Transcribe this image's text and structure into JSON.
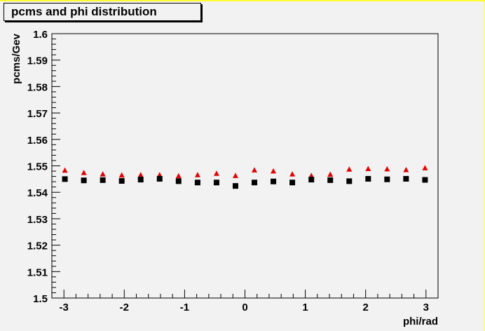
{
  "colors": {
    "background": "#f2f2f2",
    "canvas_border": "#ffff33",
    "series_red": "#e00000",
    "series_black": "#000000"
  },
  "chart_data": {
    "type": "scatter",
    "title": "pcms and phi distribution",
    "xlabel": "phi/rad",
    "ylabel": "pcms/Gev",
    "xlim": [
      -3.2,
      3.2
    ],
    "ylim": [
      1.5,
      1.6
    ],
    "xticks": [
      "-3",
      "-2",
      "-1",
      "0",
      "1",
      "2",
      "3"
    ],
    "yticks": [
      "1.5",
      "1.51",
      "1.52",
      "1.53",
      "1.54",
      "1.55",
      "1.56",
      "1.57",
      "1.58",
      "1.59",
      "1.6"
    ],
    "grid": false,
    "legend": "none",
    "series": [
      {
        "marker": "triangle",
        "color": "#e00000",
        "x": [
          -2.984,
          -2.67,
          -2.356,
          -2.042,
          -1.728,
          -1.414,
          -1.1,
          -0.785,
          -0.471,
          -0.157,
          0.157,
          0.471,
          0.785,
          1.1,
          1.414,
          1.728,
          2.042,
          2.356,
          2.67,
          2.984
        ],
        "y": [
          1.5482,
          1.5473,
          1.5468,
          1.5464,
          1.5465,
          1.5465,
          1.5461,
          1.5465,
          1.547,
          1.5462,
          1.5483,
          1.5479,
          1.5468,
          1.5462,
          1.5467,
          1.5486,
          1.5488,
          1.5487,
          1.5484,
          1.5491
        ]
      },
      {
        "marker": "square",
        "color": "#000000",
        "x": [
          -2.984,
          -2.67,
          -2.356,
          -2.042,
          -1.728,
          -1.414,
          -1.1,
          -0.785,
          -0.471,
          -0.157,
          0.157,
          0.471,
          0.785,
          1.1,
          1.414,
          1.728,
          2.042,
          2.356,
          2.67,
          2.984
        ],
        "y": [
          1.545,
          1.5445,
          1.5446,
          1.5443,
          1.5448,
          1.5451,
          1.5442,
          1.5437,
          1.5437,
          1.5424,
          1.5437,
          1.5441,
          1.5437,
          1.5448,
          1.5446,
          1.5442,
          1.5451,
          1.5449,
          1.5451,
          1.5447
        ]
      }
    ]
  }
}
